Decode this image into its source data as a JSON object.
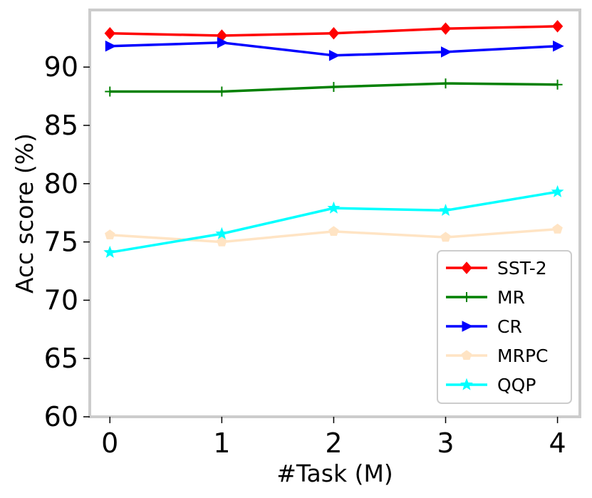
{
  "chart_data": {
    "type": "line",
    "title": "",
    "xlabel": "#Task (M)",
    "ylabel": "Acc score (%)",
    "x": [
      0,
      1,
      2,
      3,
      4
    ],
    "x_tick_labels": [
      "0",
      "1",
      "2",
      "3",
      "4"
    ],
    "y_ticks": [
      60,
      65,
      70,
      75,
      80,
      85,
      90
    ],
    "y_tick_labels": [
      "60",
      "65",
      "70",
      "75",
      "80",
      "85",
      "90"
    ],
    "xlim": [
      -0.18,
      4.2
    ],
    "ylim": [
      60,
      94.9
    ],
    "grid": false,
    "legend_position": "lower-right",
    "series": [
      {
        "name": "SST-2",
        "color": "#ff0000",
        "marker": "diamond",
        "values": [
          92.9,
          92.7,
          92.9,
          93.3,
          93.5
        ]
      },
      {
        "name": "MR",
        "color": "#008000",
        "marker": "plus",
        "values": [
          87.9,
          87.9,
          88.3,
          88.6,
          88.5
        ]
      },
      {
        "name": "CR",
        "color": "#0000ff",
        "marker": "triangle-right",
        "values": [
          91.8,
          92.1,
          91.0,
          91.3,
          91.8
        ]
      },
      {
        "name": "MRPC",
        "color": "#ffe4c4",
        "marker": "pentagon",
        "values": [
          75.6,
          75.0,
          75.9,
          75.4,
          76.1
        ]
      },
      {
        "name": "QQP",
        "color": "#00ffff",
        "marker": "star",
        "values": [
          74.1,
          75.7,
          77.9,
          77.7,
          79.3
        ]
      }
    ]
  }
}
